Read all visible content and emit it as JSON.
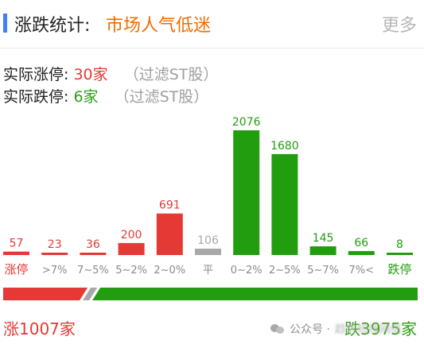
{
  "header": {
    "title": "涨跌统计:",
    "subtitle": "市场人气低迷",
    "more_label": "更多"
  },
  "stats": {
    "limit_up": {
      "label": "实际涨停:",
      "value": "30家",
      "note": "（过滤ST股）"
    },
    "limit_down": {
      "label": "实际跌停:",
      "value": "6家",
      "note": "（过滤ST股）"
    }
  },
  "colors": {
    "up": "#e53935",
    "flat": "#a8a8a8",
    "down": "#229d10",
    "accent": "#3b82f6",
    "subtitle": "#ef6c00"
  },
  "chart_data": {
    "type": "bar",
    "categories": [
      "涨停",
      ">7%",
      "7~5%",
      "5~2%",
      "2~0%",
      "平",
      "0~2%",
      "2~5%",
      "5~7%",
      "7%<",
      "跌停"
    ],
    "values": [
      57,
      23,
      36,
      200,
      691,
      106,
      2076,
      1680,
      145,
      66,
      8
    ],
    "bar_colors": [
      "up",
      "up",
      "up",
      "up",
      "up",
      "flat",
      "down",
      "down",
      "down",
      "down",
      "down"
    ],
    "category_colors": [
      "up",
      "flat",
      "flat",
      "flat",
      "flat",
      "flat",
      "flat",
      "flat",
      "flat",
      "flat",
      "down"
    ],
    "ylim": [
      0,
      2076
    ],
    "grid": false
  },
  "totals": {
    "up_label": "涨1007家",
    "down_label": "跌3975家",
    "up_count": 1007,
    "flat_count": 106,
    "down_count": 3975
  },
  "watermark": {
    "icon": "wechat-icon",
    "text": "公众号 ·",
    "blurred_text": "趋势短线网络"
  }
}
